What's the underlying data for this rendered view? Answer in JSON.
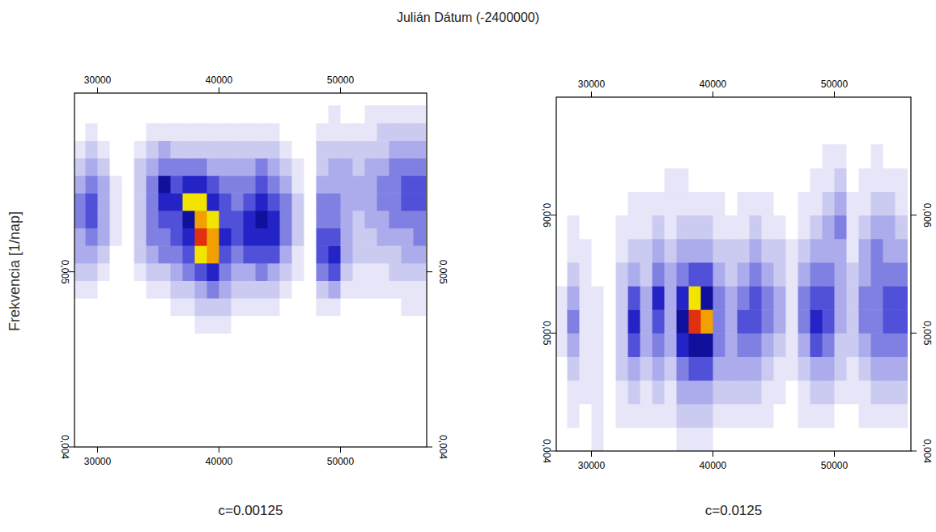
{
  "title": "Julián Dátum (-2400000)",
  "ylabel": "Frekvencia [1/nap]",
  "chart_data": [
    {
      "type": "heatmap",
      "subtitle": "c=0.00125",
      "xlim": [
        28100,
        57100
      ],
      "ylim": [
        0.004,
        0.00602
      ],
      "xticks": [
        30000,
        40000,
        50000
      ],
      "yticks": [
        {
          "value": 0.004,
          "label": "0,004"
        },
        {
          "value": 0.005,
          "label": "0,005"
        }
      ],
      "zlim": [
        0,
        10
      ],
      "x": [
        28500,
        29500,
        30500,
        31500,
        32500,
        33500,
        34500,
        35500,
        36500,
        37500,
        38500,
        39500,
        40500,
        41500,
        42500,
        43500,
        44500,
        45500,
        46500,
        47500,
        48500,
        49500,
        50500,
        51500,
        52500,
        53500,
        54500,
        55500,
        56500
      ],
      "y": [
        0.0047,
        0.0048,
        0.0049,
        0.005,
        0.0051,
        0.0052,
        0.0053,
        0.0054,
        0.0055,
        0.0056,
        0.0057,
        0.0058,
        0.0059
      ],
      "values": [
        [
          0,
          0,
          1,
          2,
          3,
          3,
          4,
          4,
          3,
          2,
          1,
          0,
          0
        ],
        [
          0,
          0,
          1,
          2,
          3,
          4,
          5,
          5,
          4,
          3,
          2,
          1,
          0
        ],
        [
          0,
          0,
          0,
          1,
          2,
          3,
          3,
          3,
          3,
          2,
          1,
          0,
          0
        ],
        [
          0,
          0,
          0,
          0,
          0,
          1,
          1,
          1,
          1,
          0,
          0,
          0,
          0
        ],
        [
          0,
          0,
          0,
          0,
          0,
          0,
          0,
          0,
          0,
          0,
          0,
          0,
          0
        ],
        [
          0,
          0,
          0,
          1,
          2,
          2,
          2,
          2,
          2,
          2,
          1,
          0,
          0
        ],
        [
          0,
          0,
          1,
          2,
          3,
          4,
          4,
          4,
          4,
          3,
          2,
          1,
          0
        ],
        [
          0,
          0,
          1,
          2,
          4,
          4,
          5,
          6,
          7,
          4,
          3,
          1,
          0
        ],
        [
          0,
          1,
          2,
          3,
          4,
          5,
          5,
          6,
          5,
          4,
          2,
          1,
          0
        ],
        [
          0,
          1,
          2,
          4,
          5,
          6,
          7,
          8,
          6,
          4,
          2,
          1,
          0
        ],
        [
          1,
          2,
          3,
          5,
          8,
          10,
          9,
          8,
          6,
          4,
          2,
          1,
          0
        ],
        [
          1,
          2,
          4,
          6,
          9,
          9,
          8,
          6,
          5,
          3,
          2,
          1,
          0
        ],
        [
          1,
          2,
          3,
          4,
          5,
          6,
          5,
          5,
          4,
          3,
          2,
          1,
          0
        ],
        [
          0,
          1,
          2,
          3,
          4,
          5,
          5,
          4,
          4,
          3,
          2,
          1,
          0
        ],
        [
          0,
          1,
          2,
          3,
          5,
          6,
          6,
          5,
          4,
          3,
          2,
          1,
          0
        ],
        [
          0,
          1,
          2,
          4,
          5,
          6,
          7,
          6,
          5,
          4,
          2,
          1,
          0
        ],
        [
          0,
          1,
          2,
          3,
          5,
          6,
          6,
          5,
          4,
          3,
          2,
          1,
          0
        ],
        [
          0,
          0,
          1,
          2,
          3,
          4,
          4,
          4,
          3,
          2,
          1,
          0,
          0
        ],
        [
          0,
          0,
          0,
          1,
          1,
          2,
          2,
          2,
          1,
          1,
          0,
          0,
          0
        ],
        [
          0,
          0,
          0,
          0,
          0,
          0,
          0,
          0,
          0,
          0,
          0,
          0,
          0
        ],
        [
          0,
          1,
          2,
          4,
          5,
          5,
          4,
          4,
          3,
          2,
          2,
          1,
          0
        ],
        [
          0,
          1,
          3,
          5,
          6,
          5,
          4,
          4,
          3,
          3,
          2,
          1,
          1
        ],
        [
          0,
          0,
          1,
          2,
          3,
          3,
          3,
          3,
          3,
          3,
          2,
          1,
          0
        ],
        [
          0,
          0,
          1,
          1,
          2,
          2,
          2,
          3,
          3,
          2,
          2,
          1,
          0
        ],
        [
          0,
          0,
          1,
          1,
          2,
          2,
          3,
          3,
          3,
          3,
          2,
          1,
          1
        ],
        [
          0,
          0,
          1,
          1,
          2,
          3,
          3,
          4,
          4,
          3,
          2,
          2,
          1
        ],
        [
          0,
          0,
          1,
          2,
          2,
          3,
          4,
          4,
          4,
          4,
          3,
          2,
          1
        ],
        [
          0,
          1,
          1,
          2,
          3,
          3,
          4,
          5,
          5,
          4,
          3,
          2,
          1
        ],
        [
          0,
          1,
          1,
          2,
          3,
          4,
          4,
          5,
          5,
          4,
          3,
          2,
          1
        ]
      ]
    },
    {
      "type": "heatmap",
      "subtitle": "c=0.0125",
      "xlim": [
        27100,
        56300
      ],
      "ylim": [
        0.004,
        0.007
      ],
      "xticks": [
        30000,
        40000,
        50000
      ],
      "yticks": [
        {
          "value": 0.004,
          "label": "0,004"
        },
        {
          "value": 0.005,
          "label": "0,005"
        },
        {
          "value": 0.006,
          "label": "0,006"
        }
      ],
      "zlim": [
        0,
        10
      ],
      "x": [
        27500,
        28500,
        29500,
        30500,
        31500,
        32500,
        33500,
        34500,
        35500,
        36500,
        37500,
        38500,
        39500,
        40500,
        41500,
        42500,
        43500,
        44500,
        45500,
        46500,
        47500,
        48500,
        49500,
        50500,
        51500,
        52500,
        53500,
        54500,
        55500
      ],
      "y": [
        0.0041,
        0.0043,
        0.0045,
        0.0047,
        0.0049,
        0.0051,
        0.0053,
        0.0055,
        0.0057,
        0.0059,
        0.0061,
        0.0063,
        0.0065
      ],
      "values": [
        [
          0,
          0,
          0,
          0,
          1,
          1,
          1,
          0,
          0,
          0,
          0,
          0,
          0
        ],
        [
          0,
          1,
          1,
          2,
          3,
          4,
          3,
          2,
          1,
          1,
          0,
          0,
          0
        ],
        [
          0,
          0,
          1,
          1,
          1,
          1,
          1,
          1,
          1,
          0,
          0,
          0,
          0
        ],
        [
          1,
          1,
          1,
          1,
          1,
          1,
          1,
          0,
          0,
          0,
          0,
          0,
          0
        ],
        [
          0,
          0,
          0,
          0,
          0,
          0,
          0,
          0,
          0,
          0,
          0,
          0,
          0
        ],
        [
          0,
          1,
          1,
          2,
          2,
          2,
          2,
          2,
          1,
          1,
          0,
          0,
          0
        ],
        [
          0,
          1,
          2,
          3,
          5,
          6,
          5,
          3,
          2,
          1,
          1,
          0,
          0
        ],
        [
          0,
          1,
          1,
          2,
          3,
          3,
          3,
          2,
          2,
          1,
          1,
          0,
          0
        ],
        [
          0,
          1,
          2,
          3,
          4,
          5,
          6,
          4,
          3,
          2,
          1,
          0,
          0
        ],
        [
          0,
          1,
          1,
          2,
          3,
          3,
          3,
          3,
          2,
          1,
          1,
          1,
          0
        ],
        [
          1,
          2,
          3,
          4,
          6,
          7,
          6,
          4,
          3,
          2,
          1,
          1,
          0
        ],
        [
          1,
          2,
          3,
          5,
          7,
          10,
          8,
          5,
          3,
          2,
          1,
          0,
          0
        ],
        [
          1,
          2,
          3,
          5,
          7,
          9,
          7,
          5,
          3,
          2,
          1,
          0,
          0
        ],
        [
          0,
          1,
          2,
          3,
          4,
          4,
          4,
          3,
          2,
          1,
          1,
          0,
          0
        ],
        [
          0,
          1,
          2,
          3,
          3,
          3,
          3,
          2,
          2,
          1,
          0,
          0,
          0
        ],
        [
          0,
          1,
          2,
          3,
          4,
          5,
          4,
          3,
          2,
          1,
          1,
          0,
          0
        ],
        [
          0,
          1,
          2,
          3,
          4,
          5,
          5,
          4,
          3,
          2,
          1,
          0,
          0
        ],
        [
          0,
          1,
          1,
          2,
          3,
          4,
          4,
          3,
          2,
          1,
          1,
          0,
          0
        ],
        [
          0,
          0,
          1,
          1,
          2,
          3,
          3,
          2,
          2,
          1,
          0,
          0,
          0
        ],
        [
          0,
          0,
          0,
          1,
          1,
          1,
          1,
          1,
          1,
          0,
          0,
          0,
          0
        ],
        [
          0,
          1,
          1,
          2,
          3,
          4,
          4,
          3,
          2,
          1,
          1,
          0,
          0
        ],
        [
          0,
          1,
          2,
          3,
          5,
          6,
          5,
          4,
          3,
          2,
          1,
          1,
          0
        ],
        [
          0,
          1,
          2,
          3,
          4,
          5,
          5,
          4,
          3,
          3,
          2,
          1,
          1
        ],
        [
          0,
          0,
          1,
          2,
          2,
          3,
          3,
          3,
          3,
          4,
          3,
          2,
          1
        ],
        [
          0,
          0,
          1,
          1,
          2,
          2,
          2,
          2,
          1,
          1,
          1,
          0,
          0
        ],
        [
          0,
          1,
          1,
          2,
          3,
          4,
          4,
          3,
          3,
          2,
          1,
          1,
          0
        ],
        [
          0,
          1,
          2,
          3,
          4,
          4,
          4,
          4,
          4,
          3,
          2,
          1,
          1
        ],
        [
          0,
          1,
          2,
          3,
          4,
          5,
          5,
          4,
          3,
          3,
          2,
          1,
          0
        ],
        [
          0,
          1,
          2,
          3,
          4,
          5,
          5,
          4,
          3,
          2,
          1,
          1,
          0
        ]
      ]
    }
  ]
}
